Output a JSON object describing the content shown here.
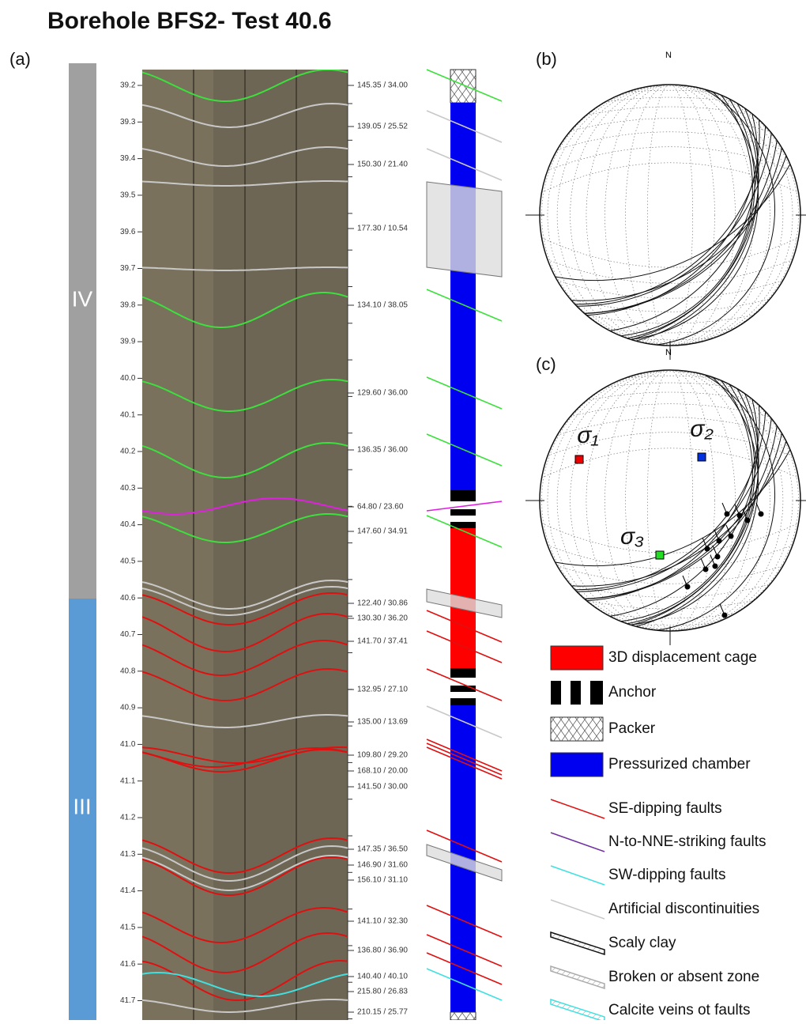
{
  "header": {
    "title": "Borehole BFS2- Test 40.6"
  },
  "panels": {
    "a": "(a)",
    "b": "(b)",
    "c": "(c)"
  },
  "units": [
    "IV",
    "III"
  ],
  "depth_ticks": [
    "39.2",
    "39.3",
    "39.4",
    "39.5",
    "39.6",
    "39.7",
    "39.8",
    "39.9",
    "40.0",
    "40.1",
    "40.2",
    "40.3",
    "40.4",
    "40.5",
    "40.6",
    "40.7",
    "40.8",
    "40.9",
    "41.0",
    "41.1",
    "41.2",
    "41.3",
    "41.4",
    "41.5",
    "41.6",
    "41.7"
  ],
  "orientations": [
    "145.35 / 34.00",
    "139.05 / 25.52",
    "150.30 / 21.40",
    "177.30 / 10.54",
    "134.10 / 38.05",
    "129.60 / 36.00",
    "136.35 / 36.00",
    "64.80 / 23.60",
    "147.60 / 34.91",
    "122.40 / 30.86",
    "130.30 / 36.20",
    "141.70 / 37.41",
    "132.95 / 27.10",
    "135.00 / 13.69",
    "109.80 / 29.20",
    "168.10 / 20.00",
    "141.50 / 30.00",
    "147.35 / 36.50",
    "146.90 / 31.60",
    "156.10 / 31.10",
    "141.10 / 32.30",
    "136.80 / 36.90",
    "140.40 / 40.10",
    "215.80 / 26.83",
    "210.15 / 25.77"
  ],
  "stereonets": {
    "north_b": "N",
    "north_c": "N",
    "sigma1": "σ₁",
    "sigma2": "σ₂",
    "sigma3": "σ₃"
  },
  "legend": [
    "3D displacement cage",
    "Anchor",
    "Packer",
    "Pressurized chamber",
    "SE-dipping faults",
    "N-to-NNE-striking faults",
    "SW-dipping faults",
    "Artificial discontinuities",
    "Scaly clay",
    "Broken or absent zone",
    "Calcite veins ot faults"
  ]
}
